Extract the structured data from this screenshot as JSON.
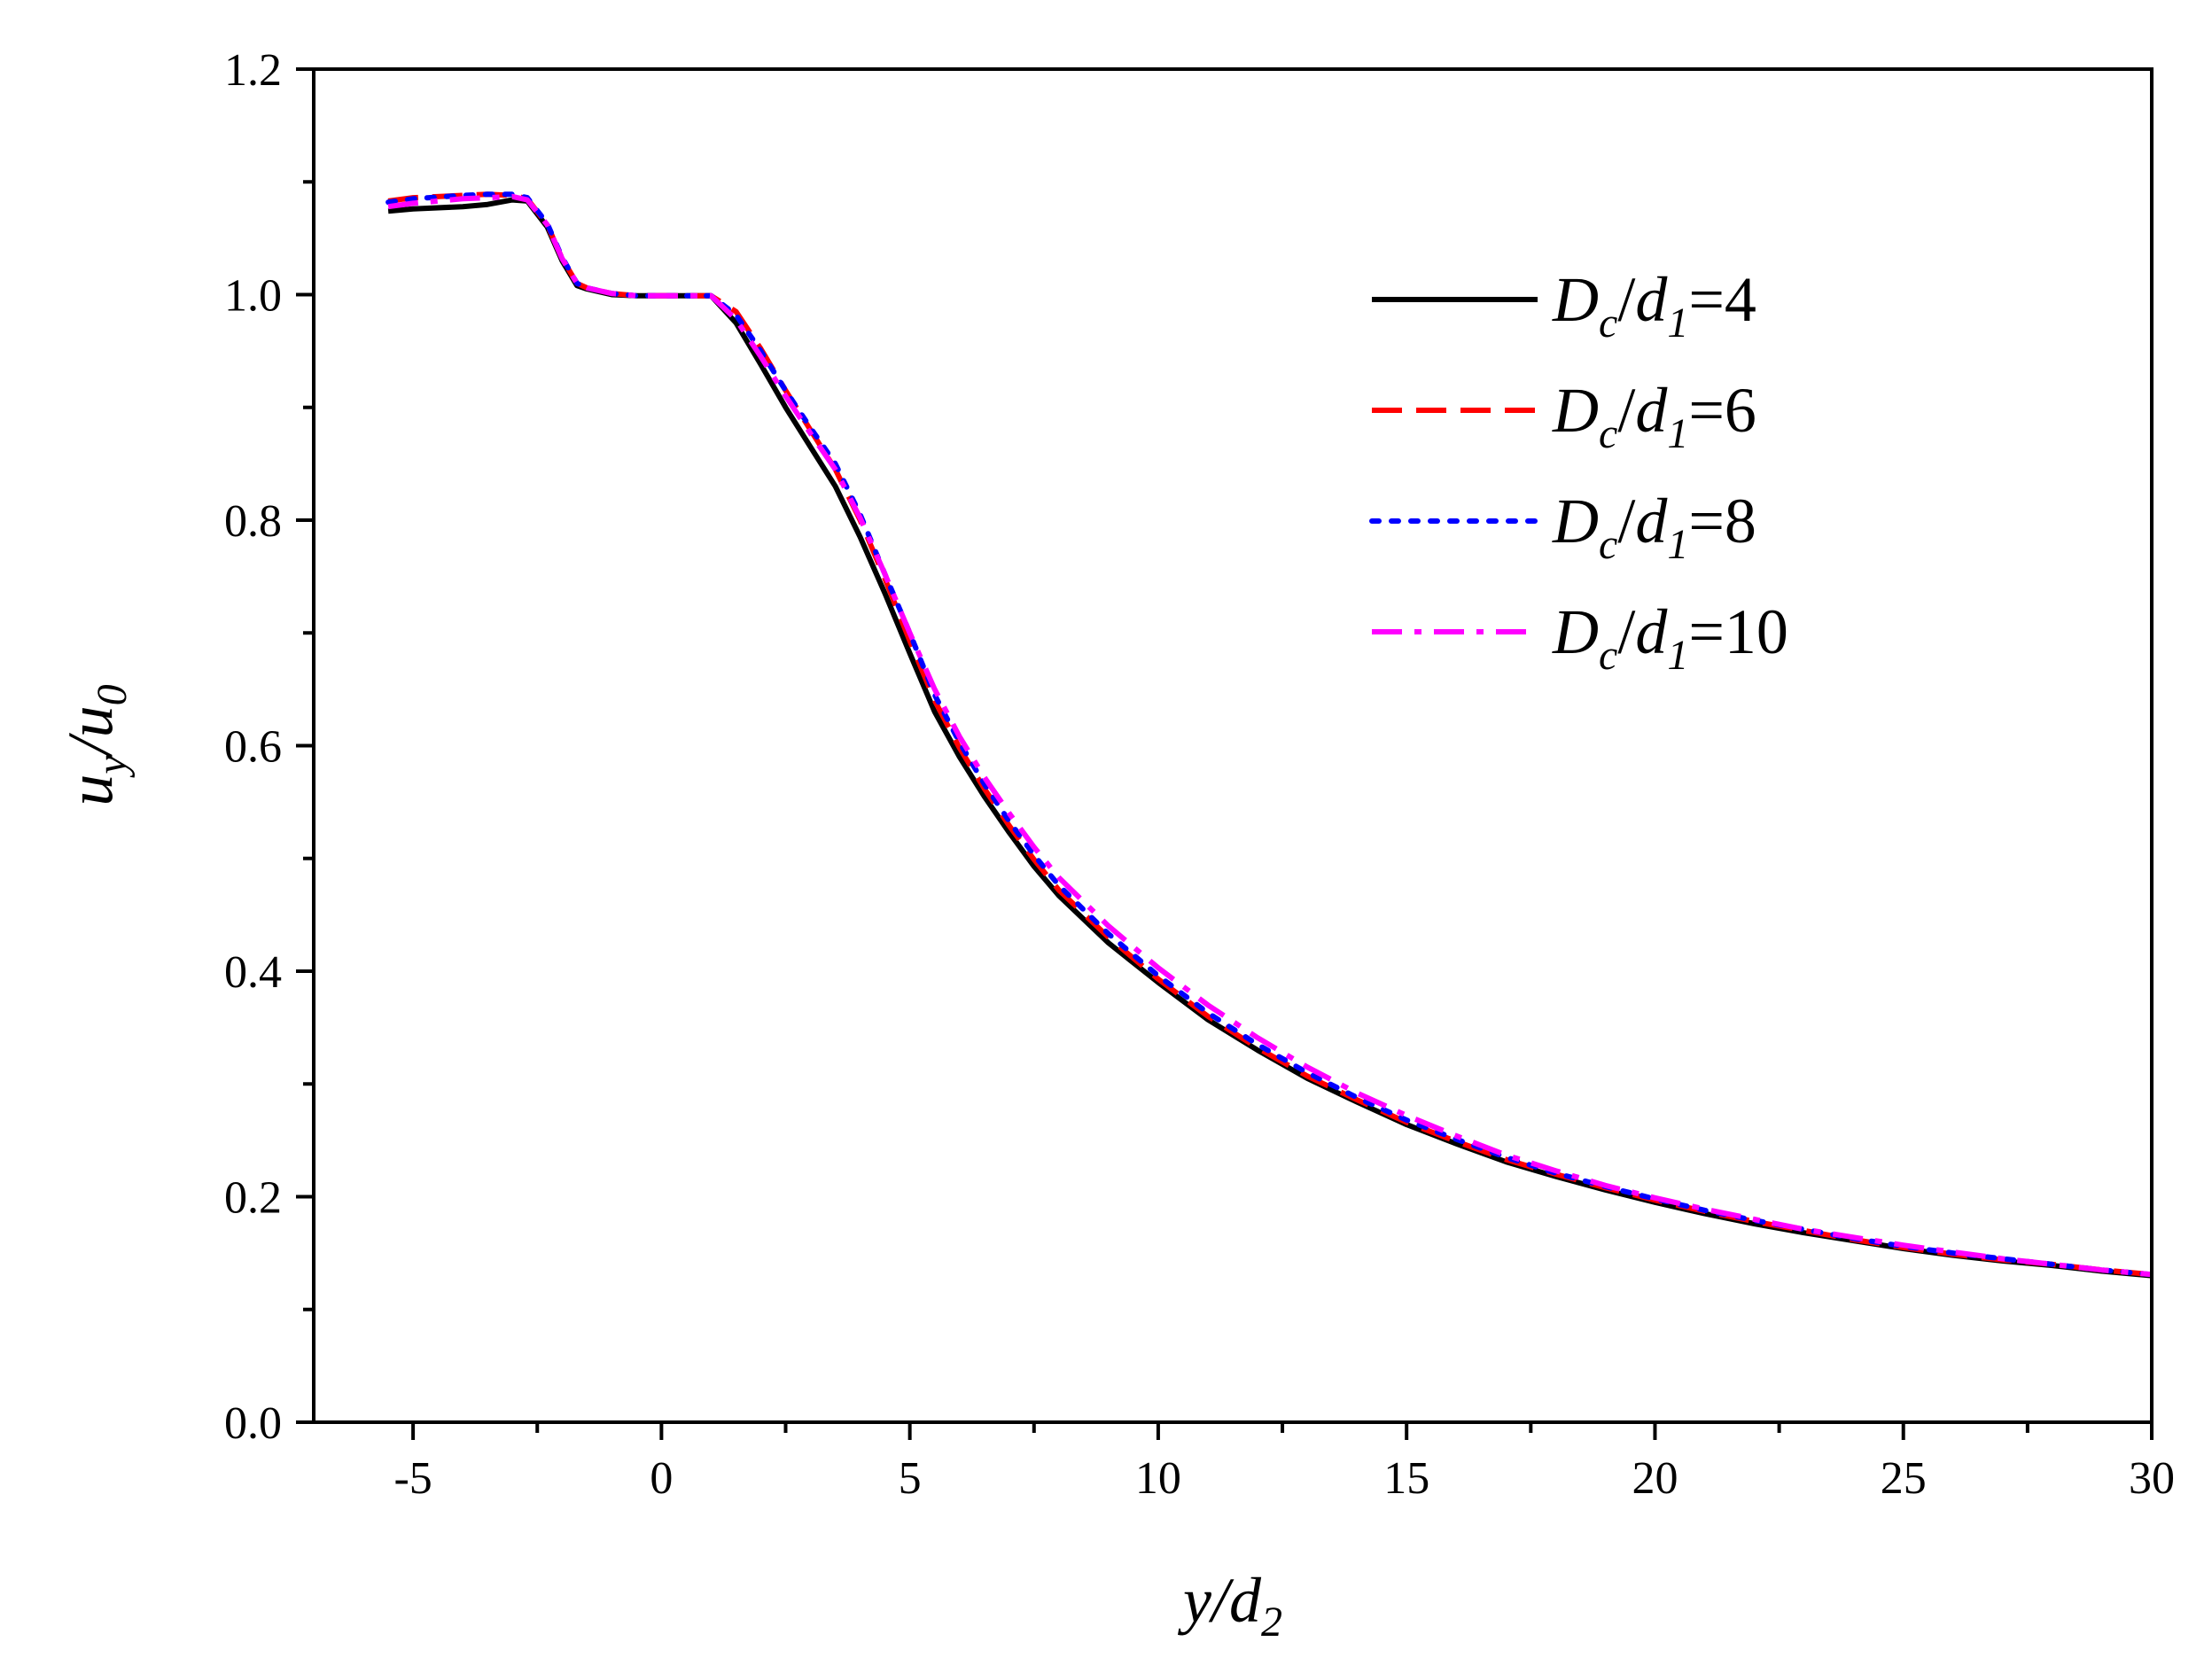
{
  "chart_data": {
    "type": "line",
    "xlim": [
      -7,
      30
    ],
    "ylim": [
      0.0,
      1.2
    ],
    "x_ticks": [
      -5,
      0,
      5,
      10,
      15,
      20,
      25,
      30
    ],
    "y_ticks": [
      0.0,
      0.2,
      0.4,
      0.6,
      0.8,
      1.0,
      1.2
    ],
    "x_tick_labels": [
      "-5",
      "0",
      "5",
      "10",
      "15",
      "20",
      "25",
      "30"
    ],
    "y_tick_labels": [
      "0.0",
      "0.2",
      "0.4",
      "0.6",
      "0.8",
      "1.0",
      "1.2"
    ],
    "xlabel": {
      "main": "y/d",
      "sub": "2"
    },
    "ylabel": {
      "main1": "u",
      "sub1": "y",
      "sep": "/",
      "main2": "u",
      "sub2": "0"
    },
    "grid": false,
    "legend_position": "top-right",
    "series": [
      {
        "name": "Dc/d1=4",
        "legend": {
          "a": "D",
          "a_sub": "c",
          "sep": "/",
          "b": "d",
          "b_sub": "1",
          "value": "=4"
        },
        "color": "#000000",
        "style": "solid",
        "x": [
          -5.5,
          -5.0,
          -4.0,
          -3.5,
          -3.0,
          -2.7,
          -2.3,
          -2.0,
          -1.7,
          -1.5,
          -1.0,
          -0.5,
          0.0,
          0.5,
          1.0,
          1.5,
          2.0,
          2.5,
          3.0,
          3.5,
          4.0,
          4.5,
          5.0,
          5.5,
          6.0,
          6.5,
          7.0,
          7.5,
          8.0,
          9.0,
          10.0,
          11.0,
          12.0,
          13.0,
          14.0,
          15.0,
          16.0,
          17.0,
          18.0,
          19.0,
          20.0,
          21.0,
          22.0,
          23.0,
          24.0,
          25.0,
          26.0,
          27.0,
          28.0,
          29.0,
          30.0
        ],
        "y": [
          1.074,
          1.076,
          1.078,
          1.08,
          1.084,
          1.083,
          1.06,
          1.03,
          1.008,
          1.005,
          1.0,
          0.999,
          0.999,
          0.999,
          0.999,
          0.975,
          0.938,
          0.9,
          0.865,
          0.83,
          0.785,
          0.735,
          0.682,
          0.63,
          0.59,
          0.555,
          0.523,
          0.493,
          0.467,
          0.425,
          0.39,
          0.357,
          0.33,
          0.305,
          0.284,
          0.264,
          0.247,
          0.231,
          0.218,
          0.206,
          0.195,
          0.185,
          0.176,
          0.168,
          0.161,
          0.154,
          0.148,
          0.143,
          0.139,
          0.134,
          0.13
        ]
      },
      {
        "name": "Dc/d1=6",
        "legend": {
          "a": "D",
          "a_sub": "c",
          "sep": "/",
          "b": "d",
          "b_sub": "1",
          "value": "=6"
        },
        "color": "#ff0000",
        "style": "dashed",
        "x": [
          -5.5,
          -5.0,
          -4.0,
          -3.5,
          -3.0,
          -2.7,
          -2.3,
          -2.0,
          -1.7,
          -1.5,
          -1.0,
          -0.5,
          0.0,
          0.5,
          1.0,
          1.5,
          2.0,
          2.5,
          3.0,
          3.5,
          4.0,
          4.5,
          5.0,
          5.5,
          6.0,
          6.5,
          7.0,
          7.5,
          8.0,
          9.0,
          10.0,
          11.0,
          12.0,
          13.0,
          14.0,
          15.0,
          16.0,
          17.0,
          18.0,
          19.0,
          20.0,
          21.0,
          22.0,
          23.0,
          24.0,
          25.0,
          26.0,
          27.0,
          28.0,
          29.0,
          30.0
        ],
        "y": [
          1.083,
          1.086,
          1.088,
          1.089,
          1.088,
          1.085,
          1.062,
          1.032,
          1.01,
          1.006,
          1.001,
          0.999,
          0.999,
          0.999,
          0.999,
          0.985,
          0.952,
          0.915,
          0.88,
          0.845,
          0.8,
          0.748,
          0.693,
          0.64,
          0.598,
          0.562,
          0.529,
          0.499,
          0.472,
          0.43,
          0.393,
          0.36,
          0.332,
          0.307,
          0.286,
          0.266,
          0.249,
          0.233,
          0.22,
          0.208,
          0.197,
          0.187,
          0.178,
          0.17,
          0.162,
          0.155,
          0.149,
          0.144,
          0.14,
          0.135,
          0.131
        ]
      },
      {
        "name": "Dc/d1=8",
        "legend": {
          "a": "D",
          "a_sub": "c",
          "sep": "/",
          "b": "d",
          "b_sub": "1",
          "value": "=8"
        },
        "color": "#0000ff",
        "style": "dotted",
        "x": [
          -5.5,
          -5.0,
          -4.0,
          -3.5,
          -3.0,
          -2.7,
          -2.3,
          -2.0,
          -1.7,
          -1.5,
          -1.0,
          -0.5,
          0.0,
          0.5,
          1.0,
          1.5,
          2.0,
          2.5,
          3.0,
          3.5,
          4.0,
          4.5,
          5.0,
          5.5,
          6.0,
          6.5,
          7.0,
          7.5,
          8.0,
          9.0,
          10.0,
          11.0,
          12.0,
          13.0,
          14.0,
          15.0,
          16.0,
          17.0,
          18.0,
          19.0,
          20.0,
          21.0,
          22.0,
          23.0,
          24.0,
          25.0,
          26.0,
          27.0,
          28.0,
          29.0,
          30.0
        ],
        "y": [
          1.082,
          1.085,
          1.088,
          1.089,
          1.089,
          1.086,
          1.063,
          1.033,
          1.01,
          1.006,
          1.001,
          0.999,
          0.999,
          0.999,
          0.999,
          0.982,
          0.95,
          0.915,
          0.882,
          0.85,
          0.805,
          0.752,
          0.7,
          0.645,
          0.603,
          0.566,
          0.533,
          0.503,
          0.476,
          0.433,
          0.396,
          0.363,
          0.335,
          0.31,
          0.288,
          0.268,
          0.251,
          0.235,
          0.221,
          0.209,
          0.198,
          0.188,
          0.179,
          0.171,
          0.163,
          0.156,
          0.15,
          0.145,
          0.14,
          0.135,
          0.131
        ]
      },
      {
        "name": "Dc/d1=10",
        "legend": {
          "a": "D",
          "a_sub": "c",
          "sep": "/",
          "b": "d",
          "b_sub": "1",
          "value": "=10"
        },
        "color": "#ff00ff",
        "style": "dashdot",
        "x": [
          -5.5,
          -5.0,
          -4.0,
          -3.5,
          -3.0,
          -2.7,
          -2.3,
          -2.0,
          -1.7,
          -1.5,
          -1.0,
          -0.5,
          0.0,
          0.5,
          1.0,
          1.5,
          2.0,
          2.5,
          3.0,
          3.5,
          4.0,
          4.5,
          5.0,
          5.5,
          6.0,
          6.5,
          7.0,
          7.5,
          8.0,
          9.0,
          10.0,
          11.0,
          12.0,
          13.0,
          14.0,
          15.0,
          16.0,
          17.0,
          18.0,
          19.0,
          20.0,
          21.0,
          22.0,
          23.0,
          24.0,
          25.0,
          26.0,
          27.0,
          28.0,
          29.0,
          30.0
        ],
        "y": [
          1.078,
          1.081,
          1.085,
          1.086,
          1.087,
          1.084,
          1.062,
          1.032,
          1.01,
          1.006,
          1.001,
          0.999,
          0.999,
          0.999,
          0.999,
          0.978,
          0.945,
          0.91,
          0.877,
          0.845,
          0.802,
          0.752,
          0.7,
          0.65,
          0.608,
          0.572,
          0.54,
          0.51,
          0.483,
          0.44,
          0.403,
          0.37,
          0.341,
          0.315,
          0.292,
          0.272,
          0.254,
          0.237,
          0.223,
          0.21,
          0.199,
          0.189,
          0.18,
          0.171,
          0.164,
          0.157,
          0.151,
          0.145,
          0.14,
          0.135,
          0.131
        ]
      }
    ]
  }
}
